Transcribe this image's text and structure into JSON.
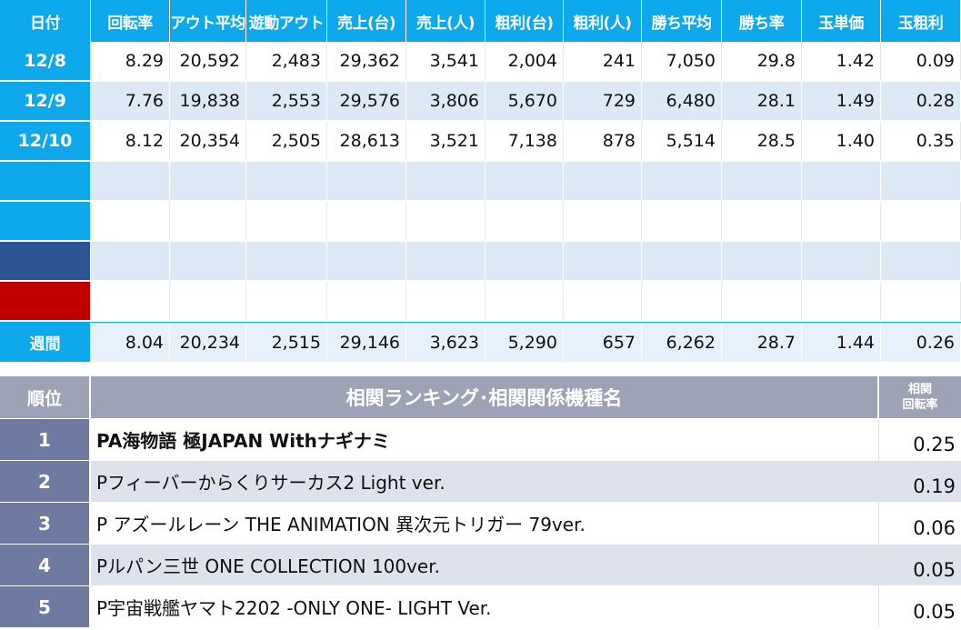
{
  "stats": {
    "headers": [
      "日付",
      "回転率",
      "アウト平均",
      "遊動アウト",
      "売上(台)",
      "売上(人)",
      "粗利(台)",
      "粗利(人)",
      "勝ち平均",
      "勝ち率",
      "玉単価",
      "玉粗利"
    ],
    "rows": [
      {
        "date": "12/8",
        "date_color": "#0ea8ec",
        "values": [
          "8.29",
          "20,592",
          "2,483",
          "29,362",
          "3,541",
          "2,004",
          "241",
          "7,050",
          "29.8",
          "1.42",
          "0.09"
        ]
      },
      {
        "date": "12/9",
        "date_color": "#0ea8ec",
        "values": [
          "7.76",
          "19,838",
          "2,553",
          "29,576",
          "3,806",
          "5,670",
          "729",
          "6,480",
          "28.1",
          "1.49",
          "0.28"
        ]
      },
      {
        "date": "12/10",
        "date_color": "#0ea8ec",
        "values": [
          "8.12",
          "20,354",
          "2,505",
          "28,613",
          "3,521",
          "7,138",
          "878",
          "5,514",
          "28.5",
          "1.40",
          "0.35"
        ]
      },
      {
        "date": "",
        "date_color": "#0ea8ec",
        "values": [
          "",
          "",
          "",
          "",
          "",
          "",
          "",
          "",
          "",
          "",
          ""
        ]
      },
      {
        "date": "",
        "date_color": "#0ea8ec",
        "values": [
          "",
          "",
          "",
          "",
          "",
          "",
          "",
          "",
          "",
          "",
          ""
        ]
      },
      {
        "date": "",
        "date_color": "#2f5597",
        "values": [
          "",
          "",
          "",
          "",
          "",
          "",
          "",
          "",
          "",
          "",
          ""
        ]
      },
      {
        "date": "",
        "date_color": "#c00000",
        "values": [
          "",
          "",
          "",
          "",
          "",
          "",
          "",
          "",
          "",
          "",
          ""
        ]
      }
    ],
    "weekly": {
      "label": "週間",
      "values": [
        "8.04",
        "20,234",
        "2,515",
        "29,146",
        "3,623",
        "5,290",
        "657",
        "6,262",
        "28.7",
        "1.44",
        "0.26"
      ]
    }
  },
  "ranking": {
    "rank_header": "順位",
    "title": "相関ランキング･相関関係機種名",
    "corr_header_line1": "相関",
    "corr_header_line2": "回転率",
    "rows": [
      {
        "rank": "1",
        "name": "PA海物語 極JAPAN Withナギナミ",
        "value": "0.25"
      },
      {
        "rank": "2",
        "name": "Pフィーバーからくりサーカス2 Light ver.",
        "value": "0.19"
      },
      {
        "rank": "3",
        "name": "P アズールレーン THE ANIMATION 異次元トリガー 79ver.",
        "value": "0.06"
      },
      {
        "rank": "4",
        "name": "Pルパン三世 ONE COLLECTION 100ver.",
        "value": "0.05"
      },
      {
        "rank": "5",
        "name": "P宇宙戦艦ヤマト2202 -ONLY ONE- LIGHT Ver.",
        "value": "0.05"
      }
    ]
  }
}
